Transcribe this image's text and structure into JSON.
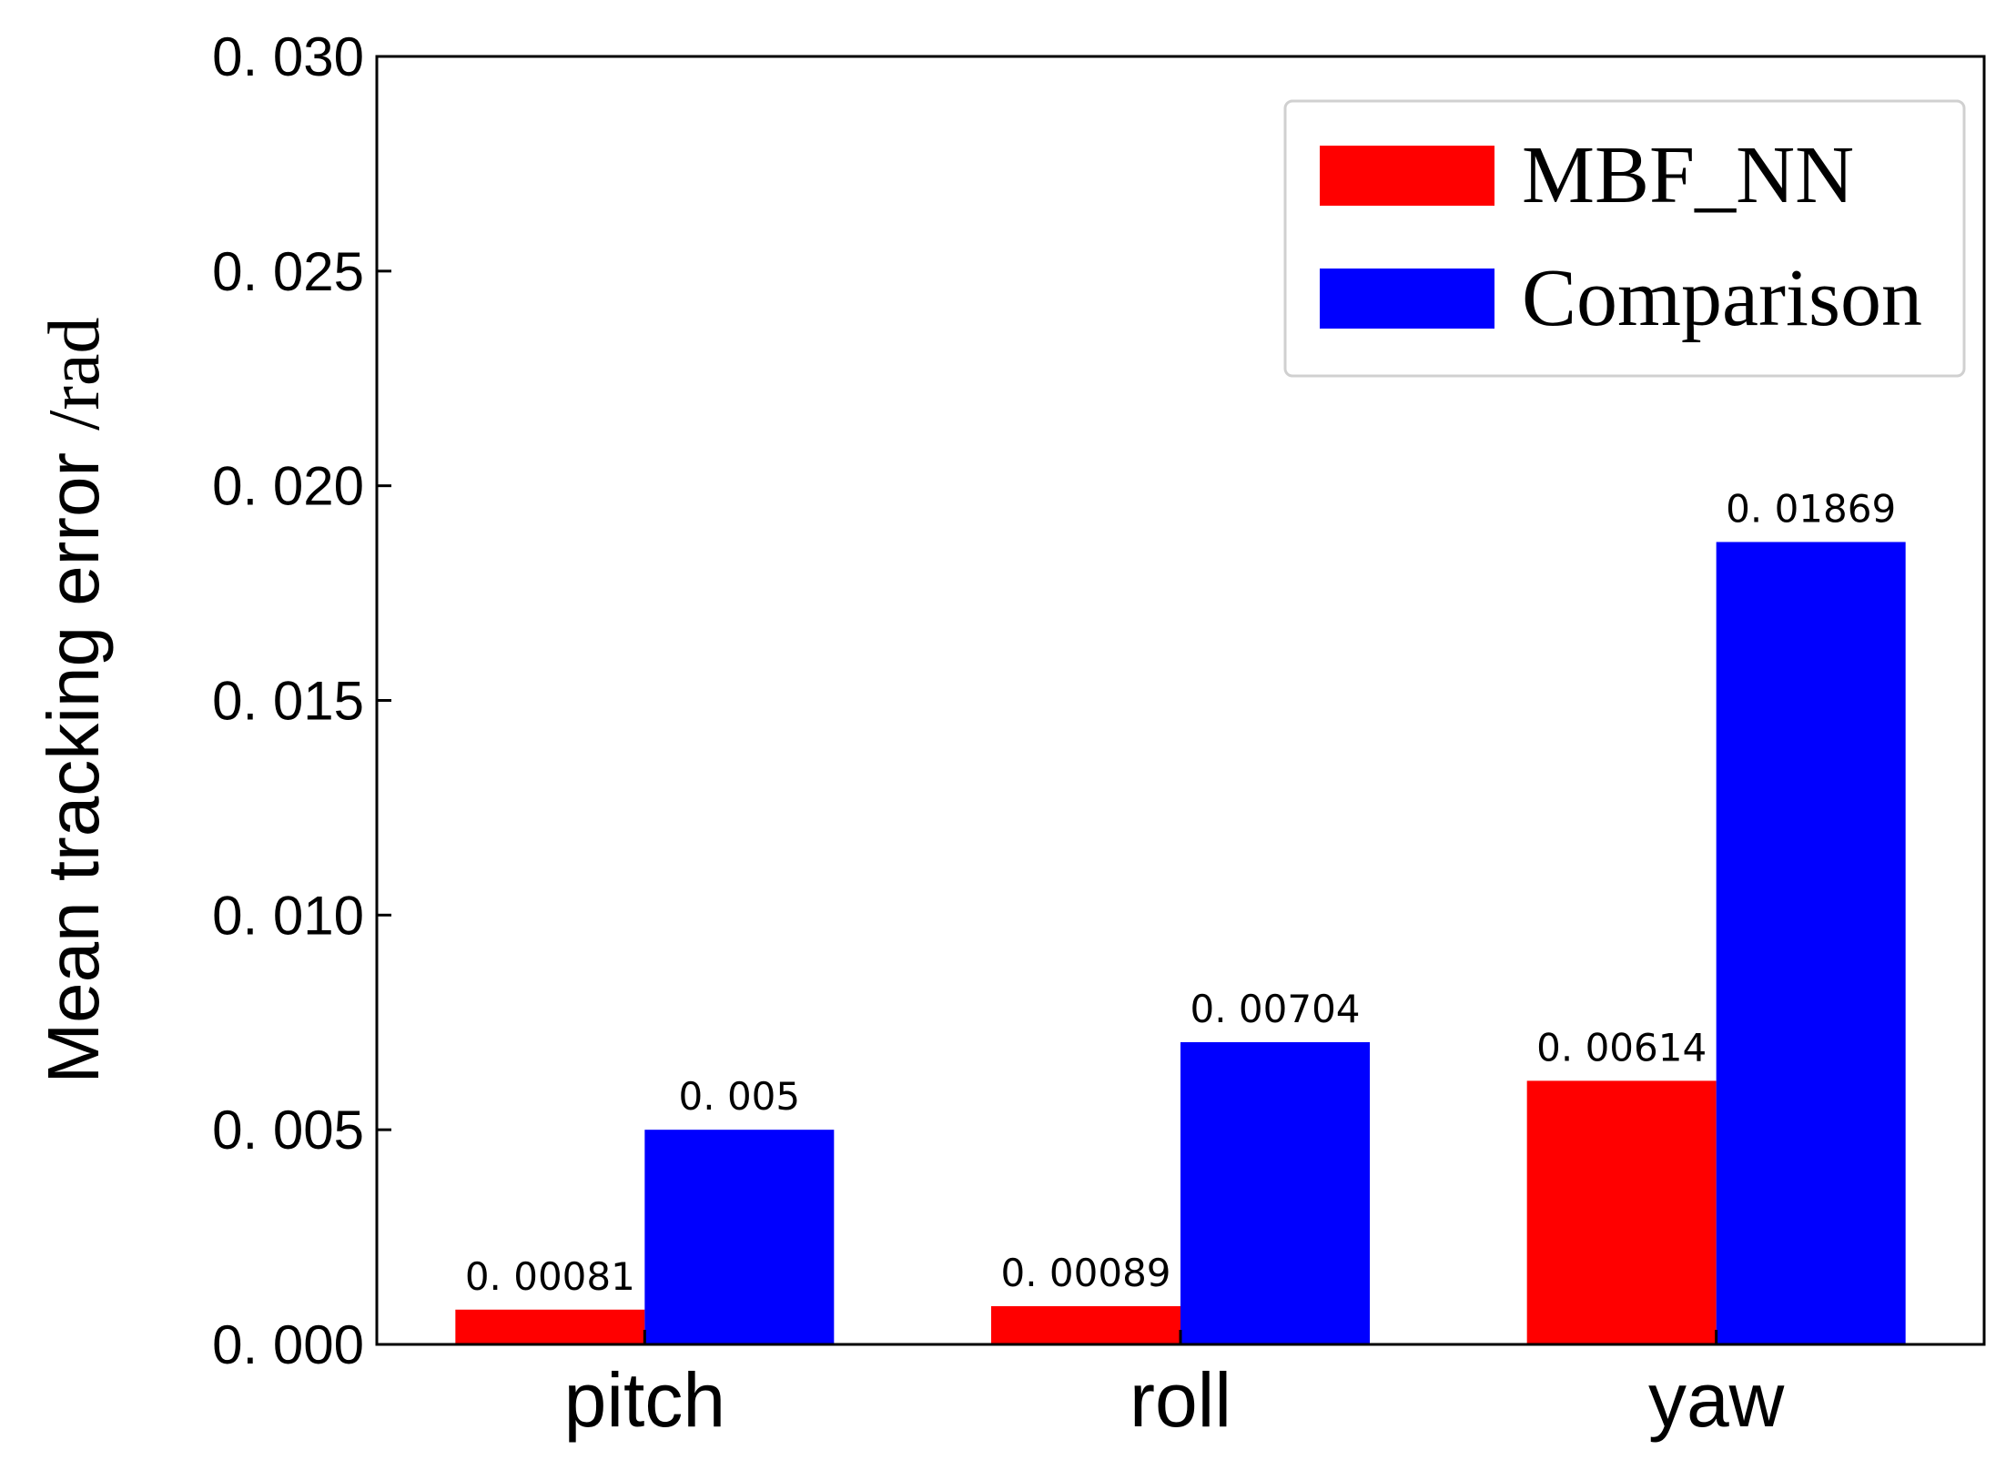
{
  "chart_data": {
    "type": "bar",
    "categories": [
      "pitch",
      "roll",
      "yaw"
    ],
    "series": [
      {
        "name": "MBF_NN",
        "color": "#ff0000",
        "values": [
          0.00081,
          0.00089,
          0.00614
        ],
        "labels": [
          "0. 00081",
          "0. 00089",
          "0. 00614"
        ]
      },
      {
        "name": "Comparison",
        "color": "#0000ff",
        "values": [
          0.005,
          0.00704,
          0.01869
        ],
        "labels": [
          "0. 005",
          "0. 00704",
          "0. 01869"
        ]
      }
    ],
    "ylabel": "Mean tracking error",
    "ylabel_unit": "/rad",
    "ylim": [
      0,
      0.03
    ],
    "yticks": [
      0,
      0.005,
      0.01,
      0.015,
      0.02,
      0.025,
      0.03
    ],
    "ytick_labels": [
      "0. 000",
      "0. 005",
      "0. 010",
      "0. 015",
      "0. 020",
      "0. 025",
      "0. 030"
    ],
    "legend_position": "top-right",
    "grid": false
  }
}
